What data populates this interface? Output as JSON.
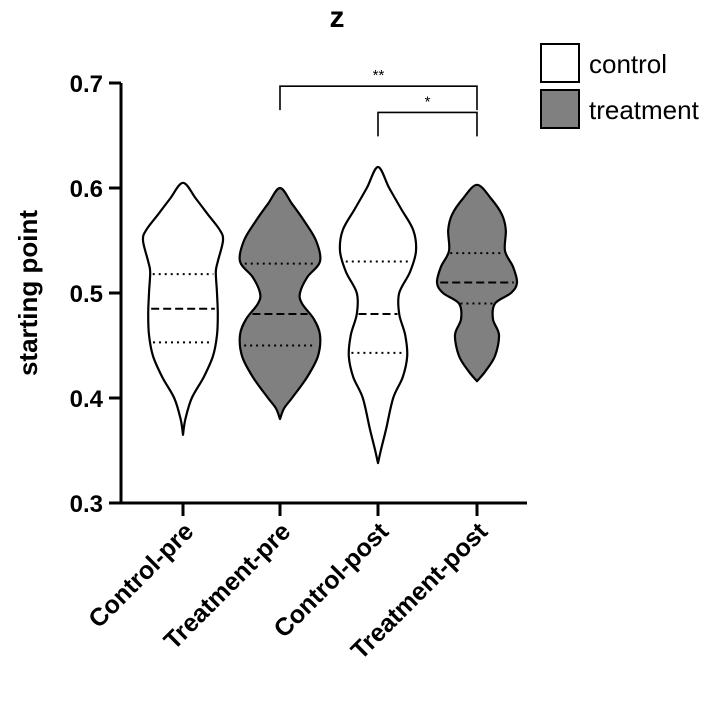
{
  "chart_data": {
    "type": "violin",
    "title": "z",
    "xlabel": "",
    "ylabel": "starting point",
    "ylim": [
      0.3,
      0.7
    ],
    "yticks": [
      0.3,
      0.4,
      0.5,
      0.6,
      0.7
    ],
    "ytick_labels": [
      "0.3",
      "0.4",
      "0.5",
      "0.6",
      "0.7"
    ],
    "legend_position": "top-right",
    "colors": {
      "control": "#ffffff",
      "treatment": "#808080",
      "stroke": "#000000"
    },
    "legend": [
      {
        "label": "control",
        "group": "control"
      },
      {
        "label": "treatment",
        "group": "treatment"
      }
    ],
    "categories": [
      "Control-pre",
      "Treatment-pre",
      "Control-post",
      "Treatment-post"
    ],
    "series": [
      {
        "name": "Control-pre",
        "group": "control",
        "min": 0.365,
        "max": 0.605,
        "q1": 0.453,
        "median": 0.485,
        "q3": 0.518,
        "density": [
          [
            0.365,
            0.0
          ],
          [
            0.38,
            0.06
          ],
          [
            0.4,
            0.22
          ],
          [
            0.42,
            0.52
          ],
          [
            0.44,
            0.75
          ],
          [
            0.46,
            0.85
          ],
          [
            0.48,
            0.87
          ],
          [
            0.5,
            0.85
          ],
          [
            0.52,
            0.82
          ],
          [
            0.53,
            0.87
          ],
          [
            0.55,
            1.0
          ],
          [
            0.56,
            0.92
          ],
          [
            0.575,
            0.62
          ],
          [
            0.59,
            0.32
          ],
          [
            0.605,
            0.0
          ]
        ]
      },
      {
        "name": "Treatment-pre",
        "group": "treatment",
        "min": 0.38,
        "max": 0.6,
        "q1": 0.45,
        "median": 0.48,
        "q3": 0.528,
        "density": [
          [
            0.38,
            0.0
          ],
          [
            0.39,
            0.1
          ],
          [
            0.4,
            0.3
          ],
          [
            0.42,
            0.68
          ],
          [
            0.44,
            0.95
          ],
          [
            0.46,
            1.0
          ],
          [
            0.475,
            0.85
          ],
          [
            0.49,
            0.55
          ],
          [
            0.5,
            0.5
          ],
          [
            0.515,
            0.68
          ],
          [
            0.53,
            1.0
          ],
          [
            0.55,
            0.9
          ],
          [
            0.57,
            0.58
          ],
          [
            0.585,
            0.3
          ],
          [
            0.6,
            0.0
          ]
        ]
      },
      {
        "name": "Control-post",
        "group": "control",
        "min": 0.338,
        "max": 0.62,
        "q1": 0.443,
        "median": 0.48,
        "q3": 0.53,
        "density": [
          [
            0.338,
            0.0
          ],
          [
            0.35,
            0.07
          ],
          [
            0.37,
            0.2
          ],
          [
            0.4,
            0.38
          ],
          [
            0.42,
            0.62
          ],
          [
            0.44,
            0.73
          ],
          [
            0.46,
            0.68
          ],
          [
            0.48,
            0.53
          ],
          [
            0.5,
            0.53
          ],
          [
            0.52,
            0.8
          ],
          [
            0.54,
            0.95
          ],
          [
            0.56,
            0.88
          ],
          [
            0.58,
            0.58
          ],
          [
            0.6,
            0.28
          ],
          [
            0.62,
            0.0
          ]
        ]
      },
      {
        "name": "Treatment-post",
        "group": "treatment",
        "min": 0.416,
        "max": 0.603,
        "q1": 0.49,
        "median": 0.51,
        "q3": 0.538,
        "density": [
          [
            0.416,
            0.0
          ],
          [
            0.425,
            0.2
          ],
          [
            0.44,
            0.45
          ],
          [
            0.46,
            0.55
          ],
          [
            0.475,
            0.4
          ],
          [
            0.49,
            0.45
          ],
          [
            0.5,
            0.85
          ],
          [
            0.51,
            1.0
          ],
          [
            0.525,
            0.9
          ],
          [
            0.54,
            0.7
          ],
          [
            0.56,
            0.72
          ],
          [
            0.575,
            0.62
          ],
          [
            0.59,
            0.35
          ],
          [
            0.603,
            0.0
          ]
        ]
      }
    ],
    "annotations": [
      {
        "from": "Treatment-pre",
        "to": "Treatment-post",
        "y": 0.697,
        "label": "**"
      },
      {
        "from": "Control-post",
        "to": "Treatment-post",
        "y": 0.672,
        "label": "*"
      }
    ]
  }
}
